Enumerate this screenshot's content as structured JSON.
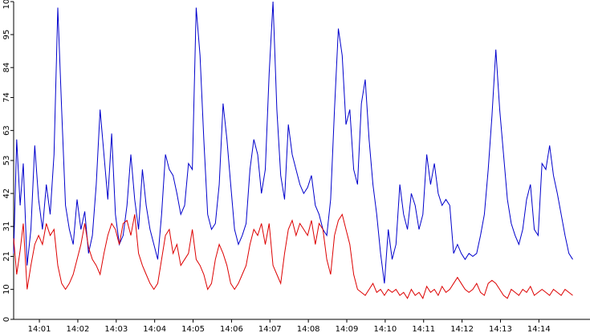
{
  "chart_data": {
    "type": "line",
    "title": "",
    "xlabel": "",
    "ylabel": "",
    "ylim": [
      0,
      106
    ],
    "xlim": [
      "14:00:20",
      "14:15:20"
    ],
    "grid": false,
    "y_ticks": [
      0,
      10,
      21,
      31,
      42,
      53,
      63,
      74,
      84,
      95,
      106
    ],
    "x_ticks": [
      "14:01",
      "14:02",
      "14:03",
      "14:04",
      "14:05",
      "14:06",
      "14:07",
      "14:08",
      "14:09",
      "14:10",
      "14:11",
      "14:12",
      "14:13",
      "14:14"
    ],
    "x_tick_minutes": [
      0.67,
      1.67,
      2.67,
      3.67,
      4.67,
      5.67,
      6.67,
      7.67,
      8.67,
      9.67,
      10.67,
      11.67,
      12.67,
      13.67
    ],
    "series": [
      {
        "color": "#0000cc",
        "points": [
          [
            0.0,
            22
          ],
          [
            0.08,
            60
          ],
          [
            0.17,
            38
          ],
          [
            0.25,
            52
          ],
          [
            0.35,
            18
          ],
          [
            0.45,
            30
          ],
          [
            0.55,
            58
          ],
          [
            0.65,
            40
          ],
          [
            0.75,
            30
          ],
          [
            0.85,
            45
          ],
          [
            0.95,
            35
          ],
          [
            1.05,
            55
          ],
          [
            1.15,
            104
          ],
          [
            1.25,
            70
          ],
          [
            1.35,
            38
          ],
          [
            1.45,
            30
          ],
          [
            1.55,
            25
          ],
          [
            1.65,
            40
          ],
          [
            1.75,
            30
          ],
          [
            1.85,
            36
          ],
          [
            1.95,
            22
          ],
          [
            2.05,
            28
          ],
          [
            2.15,
            45
          ],
          [
            2.25,
            70
          ],
          [
            2.35,
            55
          ],
          [
            2.45,
            40
          ],
          [
            2.55,
            62
          ],
          [
            2.65,
            35
          ],
          [
            2.75,
            25
          ],
          [
            2.85,
            28
          ],
          [
            2.95,
            38
          ],
          [
            3.05,
            55
          ],
          [
            3.15,
            40
          ],
          [
            3.25,
            30
          ],
          [
            3.35,
            50
          ],
          [
            3.45,
            38
          ],
          [
            3.55,
            30
          ],
          [
            3.65,
            25
          ],
          [
            3.75,
            20
          ],
          [
            3.85,
            35
          ],
          [
            3.95,
            55
          ],
          [
            4.05,
            50
          ],
          [
            4.15,
            48
          ],
          [
            4.25,
            42
          ],
          [
            4.35,
            35
          ],
          [
            4.45,
            38
          ],
          [
            4.55,
            52
          ],
          [
            4.65,
            50
          ],
          [
            4.75,
            104
          ],
          [
            4.85,
            88
          ],
          [
            4.95,
            60
          ],
          [
            5.05,
            35
          ],
          [
            5.15,
            30
          ],
          [
            5.25,
            32
          ],
          [
            5.35,
            45
          ],
          [
            5.45,
            72
          ],
          [
            5.55,
            60
          ],
          [
            5.65,
            45
          ],
          [
            5.75,
            30
          ],
          [
            5.85,
            25
          ],
          [
            5.95,
            28
          ],
          [
            6.05,
            32
          ],
          [
            6.15,
            50
          ],
          [
            6.25,
            60
          ],
          [
            6.35,
            55
          ],
          [
            6.45,
            42
          ],
          [
            6.55,
            50
          ],
          [
            6.65,
            82
          ],
          [
            6.75,
            106
          ],
          [
            6.85,
            70
          ],
          [
            6.95,
            48
          ],
          [
            7.05,
            40
          ],
          [
            7.15,
            65
          ],
          [
            7.25,
            55
          ],
          [
            7.35,
            50
          ],
          [
            7.45,
            45
          ],
          [
            7.55,
            42
          ],
          [
            7.65,
            44
          ],
          [
            7.75,
            48
          ],
          [
            7.85,
            38
          ],
          [
            7.95,
            35
          ],
          [
            8.05,
            30
          ],
          [
            8.15,
            28
          ],
          [
            8.25,
            40
          ],
          [
            8.35,
            70
          ],
          [
            8.45,
            97
          ],
          [
            8.55,
            88
          ],
          [
            8.65,
            65
          ],
          [
            8.75,
            70
          ],
          [
            8.85,
            50
          ],
          [
            8.95,
            45
          ],
          [
            9.05,
            72
          ],
          [
            9.15,
            80
          ],
          [
            9.25,
            60
          ],
          [
            9.35,
            45
          ],
          [
            9.45,
            35
          ],
          [
            9.55,
            22
          ],
          [
            9.65,
            12
          ],
          [
            9.75,
            30
          ],
          [
            9.85,
            20
          ],
          [
            9.95,
            25
          ],
          [
            10.05,
            45
          ],
          [
            10.15,
            35
          ],
          [
            10.25,
            30
          ],
          [
            10.35,
            42
          ],
          [
            10.45,
            38
          ],
          [
            10.55,
            30
          ],
          [
            10.65,
            35
          ],
          [
            10.75,
            55
          ],
          [
            10.85,
            45
          ],
          [
            10.95,
            52
          ],
          [
            11.05,
            42
          ],
          [
            11.15,
            38
          ],
          [
            11.25,
            40
          ],
          [
            11.35,
            38
          ],
          [
            11.45,
            22
          ],
          [
            11.55,
            25
          ],
          [
            11.65,
            22
          ],
          [
            11.75,
            20
          ],
          [
            11.85,
            22
          ],
          [
            11.95,
            21
          ],
          [
            12.05,
            22
          ],
          [
            12.15,
            28
          ],
          [
            12.25,
            35
          ],
          [
            12.35,
            50
          ],
          [
            12.45,
            68
          ],
          [
            12.55,
            90
          ],
          [
            12.65,
            70
          ],
          [
            12.75,
            55
          ],
          [
            12.85,
            40
          ],
          [
            12.95,
            32
          ],
          [
            13.05,
            28
          ],
          [
            13.15,
            25
          ],
          [
            13.25,
            30
          ],
          [
            13.35,
            40
          ],
          [
            13.45,
            45
          ],
          [
            13.55,
            30
          ],
          [
            13.65,
            28
          ],
          [
            13.75,
            52
          ],
          [
            13.85,
            50
          ],
          [
            13.95,
            58
          ],
          [
            14.05,
            48
          ],
          [
            14.15,
            42
          ],
          [
            14.25,
            35
          ],
          [
            14.35,
            28
          ],
          [
            14.45,
            22
          ],
          [
            14.55,
            20
          ]
        ]
      },
      {
        "color": "#dd0000",
        "points": [
          [
            0.0,
            27
          ],
          [
            0.08,
            15
          ],
          [
            0.17,
            23
          ],
          [
            0.25,
            32
          ],
          [
            0.35,
            10
          ],
          [
            0.45,
            18
          ],
          [
            0.55,
            25
          ],
          [
            0.65,
            28
          ],
          [
            0.75,
            25
          ],
          [
            0.85,
            32
          ],
          [
            0.95,
            28
          ],
          [
            1.05,
            30
          ],
          [
            1.15,
            18
          ],
          [
            1.25,
            12
          ],
          [
            1.35,
            10
          ],
          [
            1.45,
            12
          ],
          [
            1.55,
            15
          ],
          [
            1.65,
            20
          ],
          [
            1.75,
            25
          ],
          [
            1.85,
            32
          ],
          [
            1.95,
            24
          ],
          [
            2.05,
            20
          ],
          [
            2.15,
            18
          ],
          [
            2.25,
            15
          ],
          [
            2.35,
            22
          ],
          [
            2.45,
            28
          ],
          [
            2.55,
            32
          ],
          [
            2.65,
            30
          ],
          [
            2.75,
            25
          ],
          [
            2.85,
            32
          ],
          [
            2.95,
            33
          ],
          [
            3.05,
            28
          ],
          [
            3.15,
            35
          ],
          [
            3.25,
            22
          ],
          [
            3.35,
            18
          ],
          [
            3.45,
            15
          ],
          [
            3.55,
            12
          ],
          [
            3.65,
            10
          ],
          [
            3.75,
            12
          ],
          [
            3.85,
            20
          ],
          [
            3.95,
            28
          ],
          [
            4.05,
            30
          ],
          [
            4.15,
            22
          ],
          [
            4.25,
            25
          ],
          [
            4.35,
            18
          ],
          [
            4.45,
            20
          ],
          [
            4.55,
            22
          ],
          [
            4.65,
            30
          ],
          [
            4.75,
            20
          ],
          [
            4.85,
            18
          ],
          [
            4.95,
            15
          ],
          [
            5.05,
            10
          ],
          [
            5.15,
            12
          ],
          [
            5.25,
            20
          ],
          [
            5.35,
            25
          ],
          [
            5.45,
            22
          ],
          [
            5.55,
            18
          ],
          [
            5.65,
            12
          ],
          [
            5.75,
            10
          ],
          [
            5.85,
            12
          ],
          [
            5.95,
            15
          ],
          [
            6.05,
            18
          ],
          [
            6.15,
            25
          ],
          [
            6.25,
            30
          ],
          [
            6.35,
            28
          ],
          [
            6.45,
            32
          ],
          [
            6.55,
            25
          ],
          [
            6.65,
            32
          ],
          [
            6.75,
            18
          ],
          [
            6.85,
            15
          ],
          [
            6.95,
            12
          ],
          [
            7.05,
            22
          ],
          [
            7.15,
            30
          ],
          [
            7.25,
            33
          ],
          [
            7.35,
            28
          ],
          [
            7.45,
            32
          ],
          [
            7.55,
            30
          ],
          [
            7.65,
            28
          ],
          [
            7.75,
            33
          ],
          [
            7.85,
            25
          ],
          [
            7.95,
            32
          ],
          [
            8.05,
            30
          ],
          [
            8.15,
            20
          ],
          [
            8.25,
            15
          ],
          [
            8.35,
            28
          ],
          [
            8.45,
            33
          ],
          [
            8.55,
            35
          ],
          [
            8.65,
            30
          ],
          [
            8.75,
            25
          ],
          [
            8.85,
            15
          ],
          [
            8.95,
            10
          ],
          [
            9.05,
            9
          ],
          [
            9.15,
            8
          ],
          [
            9.25,
            10
          ],
          [
            9.35,
            12
          ],
          [
            9.45,
            9
          ],
          [
            9.55,
            10
          ],
          [
            9.65,
            8
          ],
          [
            9.75,
            10
          ],
          [
            9.85,
            9
          ],
          [
            9.95,
            10
          ],
          [
            10.05,
            8
          ],
          [
            10.15,
            9
          ],
          [
            10.25,
            7
          ],
          [
            10.35,
            10
          ],
          [
            10.45,
            8
          ],
          [
            10.55,
            9
          ],
          [
            10.65,
            7
          ],
          [
            10.75,
            11
          ],
          [
            10.85,
            9
          ],
          [
            10.95,
            10
          ],
          [
            11.05,
            8
          ],
          [
            11.15,
            11
          ],
          [
            11.25,
            9
          ],
          [
            11.35,
            10
          ],
          [
            11.45,
            12
          ],
          [
            11.55,
            14
          ],
          [
            11.65,
            12
          ],
          [
            11.75,
            10
          ],
          [
            11.85,
            9
          ],
          [
            11.95,
            10
          ],
          [
            12.05,
            12
          ],
          [
            12.15,
            9
          ],
          [
            12.25,
            8
          ],
          [
            12.35,
            12
          ],
          [
            12.45,
            13
          ],
          [
            12.55,
            12
          ],
          [
            12.65,
            10
          ],
          [
            12.75,
            8
          ],
          [
            12.85,
            7
          ],
          [
            12.95,
            10
          ],
          [
            13.05,
            9
          ],
          [
            13.15,
            8
          ],
          [
            13.25,
            10
          ],
          [
            13.35,
            9
          ],
          [
            13.45,
            11
          ],
          [
            13.55,
            8
          ],
          [
            13.65,
            9
          ],
          [
            13.75,
            10
          ],
          [
            13.85,
            9
          ],
          [
            13.95,
            8
          ],
          [
            14.05,
            10
          ],
          [
            14.15,
            9
          ],
          [
            14.25,
            8
          ],
          [
            14.35,
            10
          ],
          [
            14.45,
            9
          ],
          [
            14.55,
            8
          ]
        ]
      }
    ]
  }
}
